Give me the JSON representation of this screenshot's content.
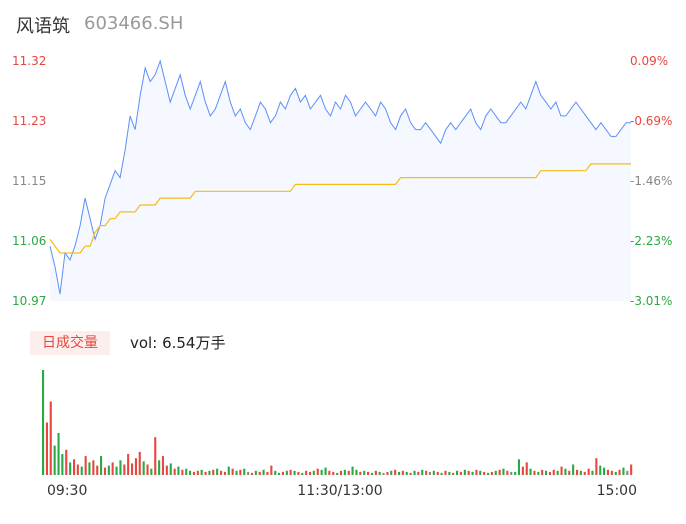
{
  "header": {
    "name": "风语筑",
    "code": "603466.SH"
  },
  "volume_panel": {
    "tag": "日成交量",
    "vol_label": "vol:",
    "vol_value": "6.54万手"
  },
  "colors": {
    "price": "#5b8ff9",
    "avg": "#f6bd16",
    "up": "#e8473f",
    "down": "#2aa843",
    "neutral": "#888888",
    "fill": "#f5f8ff"
  },
  "chart_data": [
    {
      "type": "line",
      "title": "",
      "price_axis": {
        "ticks": [
          "11.32",
          "11.23",
          "11.15",
          "11.06",
          "10.97"
        ],
        "ylim": [
          10.97,
          11.32
        ]
      },
      "pct_axis": {
        "ticks": [
          "0.09%",
          "-0.69%",
          "-1.46%",
          "-2.23%",
          "-3.01%"
        ]
      },
      "x_ticks": [
        "09:30",
        "11:30/13:00",
        "15:00"
      ],
      "series": [
        {
          "key": "price",
          "values": [
            11.05,
            11.02,
            10.98,
            11.04,
            11.03,
            11.05,
            11.08,
            11.12,
            11.09,
            11.06,
            11.08,
            11.12,
            11.14,
            11.16,
            11.15,
            11.19,
            11.24,
            11.22,
            11.27,
            11.31,
            11.29,
            11.3,
            11.32,
            11.29,
            11.26,
            11.28,
            11.3,
            11.27,
            11.25,
            11.27,
            11.29,
            11.26,
            11.24,
            11.25,
            11.27,
            11.29,
            11.26,
            11.24,
            11.25,
            11.23,
            11.22,
            11.24,
            11.26,
            11.25,
            11.23,
            11.24,
            11.26,
            11.25,
            11.27,
            11.28,
            11.26,
            11.27,
            11.25,
            11.26,
            11.27,
            11.25,
            11.24,
            11.26,
            11.25,
            11.27,
            11.26,
            11.24,
            11.25,
            11.26,
            11.25,
            11.24,
            11.26,
            11.25,
            11.23,
            11.22,
            11.24,
            11.25,
            11.23,
            11.22,
            11.22,
            11.23,
            11.22,
            11.21,
            11.2,
            11.22,
            11.23,
            11.22,
            11.23,
            11.24,
            11.25,
            11.23,
            11.22,
            11.24,
            11.25,
            11.24,
            11.23,
            11.23,
            11.24,
            11.25,
            11.26,
            11.25,
            11.27,
            11.29,
            11.27,
            11.26,
            11.25,
            11.26,
            11.24,
            11.24,
            11.25,
            11.26,
            11.25,
            11.24,
            11.23,
            11.22,
            11.23,
            11.22,
            11.21,
            11.21,
            11.22,
            11.23,
            11.23
          ]
        },
        {
          "key": "avg",
          "values": [
            11.06,
            11.05,
            11.04,
            11.04,
            11.04,
            11.04,
            11.04,
            11.05,
            11.05,
            11.07,
            11.08,
            11.08,
            11.09,
            11.09,
            11.1,
            11.1,
            11.1,
            11.1,
            11.11,
            11.11,
            11.11,
            11.11,
            11.12,
            11.12,
            11.12,
            11.12,
            11.12,
            11.12,
            11.12,
            11.13,
            11.13,
            11.13,
            11.13,
            11.13,
            11.13,
            11.13,
            11.13,
            11.13,
            11.13,
            11.13,
            11.13,
            11.13,
            11.13,
            11.13,
            11.13,
            11.13,
            11.13,
            11.13,
            11.13,
            11.14,
            11.14,
            11.14,
            11.14,
            11.14,
            11.14,
            11.14,
            11.14,
            11.14,
            11.14,
            11.14,
            11.14,
            11.14,
            11.14,
            11.14,
            11.14,
            11.14,
            11.14,
            11.14,
            11.14,
            11.14,
            11.15,
            11.15,
            11.15,
            11.15,
            11.15,
            11.15,
            11.15,
            11.15,
            11.15,
            11.15,
            11.15,
            11.15,
            11.15,
            11.15,
            11.15,
            11.15,
            11.15,
            11.15,
            11.15,
            11.15,
            11.15,
            11.15,
            11.15,
            11.15,
            11.15,
            11.15,
            11.15,
            11.15,
            11.16,
            11.16,
            11.16,
            11.16,
            11.16,
            11.16,
            11.16,
            11.16,
            11.16,
            11.16,
            11.17,
            11.17,
            11.17,
            11.17,
            11.17,
            11.17,
            11.17,
            11.17,
            11.17
          ]
        }
      ]
    },
    {
      "type": "bar",
      "title": "",
      "values": [
        100,
        50,
        70,
        28,
        40,
        20,
        24,
        12,
        15,
        10,
        8,
        18,
        12,
        14,
        9,
        18,
        7,
        9,
        12,
        8,
        14,
        10,
        20,
        11,
        16,
        22,
        13,
        10,
        6,
        36,
        14,
        18,
        9,
        11,
        6,
        8,
        5,
        6,
        4,
        3,
        4,
        5,
        3,
        4,
        5,
        6,
        4,
        3,
        8,
        6,
        4,
        5,
        6,
        3,
        2,
        4,
        3,
        5,
        3,
        9,
        4,
        2,
        3,
        4,
        5,
        4,
        3,
        2,
        4,
        3,
        4,
        6,
        5,
        7,
        4,
        3,
        2,
        4,
        5,
        4,
        8,
        5,
        3,
        4,
        3,
        2,
        4,
        3,
        2,
        3,
        4,
        5,
        3,
        4,
        3,
        2,
        4,
        3,
        5,
        4,
        3,
        4,
        3,
        2,
        4,
        3,
        2,
        4,
        3,
        5,
        4,
        3,
        5,
        4,
        3,
        2,
        3,
        4,
        5,
        6,
        4,
        3,
        3,
        15,
        8,
        12,
        6,
        4,
        3,
        5,
        4,
        3,
        5,
        4,
        8,
        6,
        4,
        10,
        5,
        4,
        3,
        6,
        4,
        16,
        9,
        7,
        5,
        4,
        3,
        5,
        7,
        4,
        10
      ],
      "directions": [
        "d",
        "u",
        "u",
        "d",
        "d",
        "d",
        "u",
        "d",
        "u",
        "u",
        "d",
        "u",
        "d",
        "u",
        "u",
        "d",
        "u",
        "d",
        "u",
        "d",
        "d",
        "u",
        "u",
        "u",
        "u",
        "u",
        "d",
        "u",
        "d",
        "u",
        "d",
        "u",
        "u",
        "d",
        "u",
        "d",
        "u",
        "d",
        "d",
        "u",
        "u",
        "d",
        "u",
        "d",
        "u",
        "d",
        "u",
        "u",
        "d",
        "u",
        "d",
        "u",
        "d",
        "n",
        "u",
        "d",
        "u",
        "d",
        "u",
        "u",
        "d",
        "d",
        "u",
        "d",
        "u",
        "d",
        "u",
        "d",
        "u",
        "u",
        "d",
        "u",
        "d",
        "d",
        "u",
        "u",
        "d",
        "u",
        "d",
        "u",
        "d",
        "d",
        "u",
        "d",
        "u",
        "d",
        "u",
        "d",
        "n",
        "u",
        "d",
        "u",
        "d",
        "u",
        "d",
        "u",
        "d",
        "u",
        "d",
        "u",
        "n",
        "d",
        "u",
        "d",
        "u",
        "d",
        "u",
        "d",
        "u",
        "d",
        "u",
        "d",
        "u",
        "d",
        "u",
        "d",
        "u",
        "d",
        "u",
        "d",
        "u",
        "n",
        "d",
        "d",
        "u",
        "u",
        "d",
        "u",
        "d",
        "u",
        "d",
        "u",
        "u",
        "d",
        "u",
        "d",
        "u",
        "d",
        "u",
        "d",
        "u",
        "u",
        "d",
        "u",
        "d",
        "d",
        "u",
        "u",
        "d",
        "u",
        "d",
        "n",
        "u",
        "u",
        "u",
        "d",
        "u",
        "u",
        "d",
        "n"
      ]
    }
  ]
}
